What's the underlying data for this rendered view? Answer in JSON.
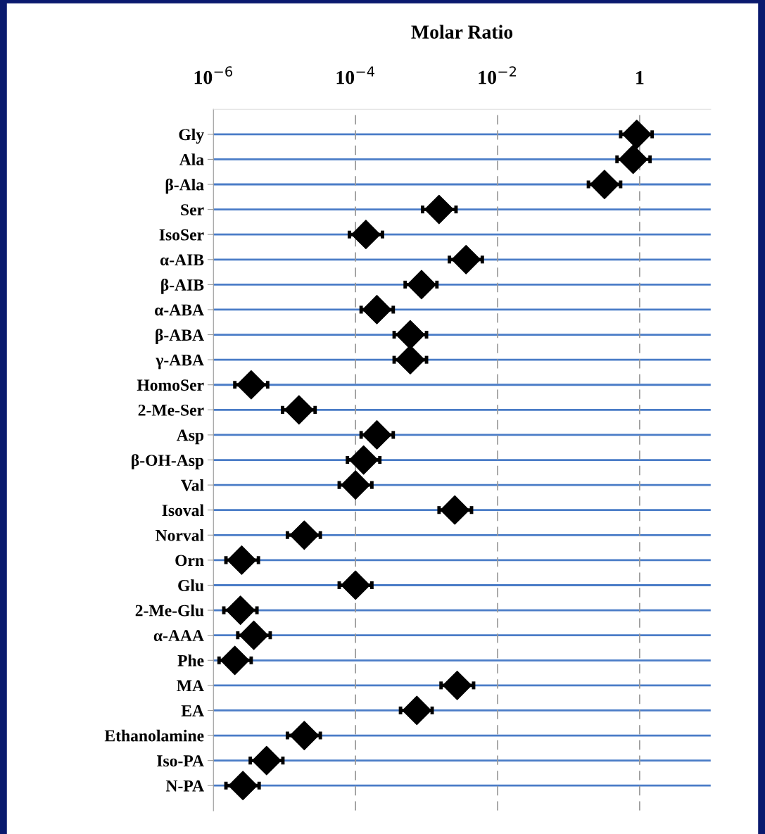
{
  "chart_data": {
    "type": "scatter",
    "orientation": "horizontal",
    "title": "Molar Ratio",
    "categories": [
      "Gly",
      "Ala",
      "β-Ala",
      "Ser",
      "IsoSer",
      "α-AIB",
      "β-AIB",
      "α-ABA",
      "β-ABA",
      "γ-ABA",
      "HomoSer",
      "2-Me-Ser",
      "Asp",
      "β-OH-Asp",
      "Val",
      "Isoval",
      "Norval",
      "Orn",
      "Glu",
      "2-Me-Glu",
      "α-AAA",
      "Phe",
      "MA",
      "EA",
      "Ethanolamine",
      "Iso-PA",
      "N-PA"
    ],
    "values": [
      0.91,
      0.81,
      0.32,
      0.0015,
      0.00014,
      0.0036,
      0.00085,
      0.0002,
      0.00059,
      0.00059,
      3.4e-06,
      1.6e-05,
      0.0002,
      0.00013,
      0.0001,
      0.0025,
      1.9e-05,
      2.5e-06,
      0.0001,
      2.4e-06,
      3.7e-06,
      2e-06,
      0.0027,
      0.00073,
      1.9e-05,
      5.6e-06,
      2.6e-06
    ],
    "errors": [
      [
        0.54,
        1.5
      ],
      [
        0.48,
        1.4
      ],
      [
        0.19,
        0.54
      ],
      [
        0.00088,
        0.0026
      ],
      [
        8.2e-05,
        0.00024
      ],
      [
        0.0021,
        0.0061
      ],
      [
        0.0005,
        0.0014
      ],
      [
        0.00012,
        0.00034
      ],
      [
        0.00035,
        0.001
      ],
      [
        0.00035,
        0.001
      ],
      [
        2e-06,
        5.8e-06
      ],
      [
        9.4e-06,
        2.7e-05
      ],
      [
        0.00012,
        0.00034
      ],
      [
        7.7e-05,
        0.00022
      ],
      [
        5.9e-05,
        0.00017
      ],
      [
        0.0015,
        0.0043
      ],
      [
        1.1e-05,
        3.2e-05
      ],
      [
        1.5e-06,
        4.3e-06
      ],
      [
        5.9e-05,
        0.00017
      ],
      [
        1.4e-06,
        4.1e-06
      ],
      [
        2.2e-06,
        6.3e-06
      ],
      [
        1.2e-06,
        3.4e-06
      ],
      [
        0.0016,
        0.0046
      ],
      [
        0.00043,
        0.0012
      ],
      [
        1.1e-05,
        3.2e-05
      ],
      [
        3.3e-06,
        9.5e-06
      ],
      [
        1.5e-06,
        4.4e-06
      ]
    ],
    "color": "#000000",
    "marker": "diamond",
    "log": "x",
    "xlim": [
      1e-06,
      10
    ],
    "xticks": [
      {
        "value": 1e-06,
        "label": "10$^{−6}$"
      },
      {
        "value": 0.0001,
        "label": "10$^{−4}$"
      },
      {
        "value": 0.01,
        "label": "10$^{−2}$"
      },
      1
    ],
    "grid": true
  }
}
